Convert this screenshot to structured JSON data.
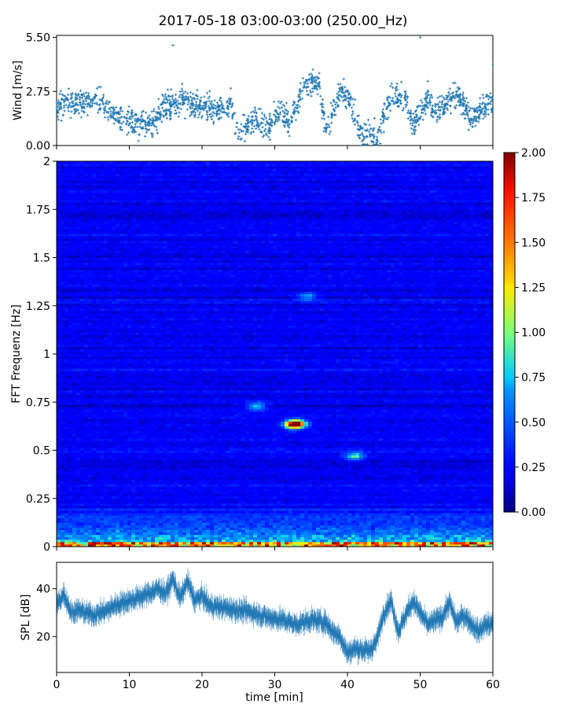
{
  "title": "2017-05-18 03:00-03:00 (250.00_Hz)",
  "chart_data": [
    {
      "type": "scatter",
      "name": "wind",
      "ylabel": "Wind [m/s]",
      "xlim": [
        0,
        60
      ],
      "ylim": [
        0,
        5.6
      ],
      "yticks": [
        0.0,
        2.75,
        5.5
      ],
      "ytick_labels": [
        "0.00",
        "2.75",
        "5.50"
      ],
      "color": "#1f77b4",
      "marker": "+",
      "segments": [
        {
          "x": [
            0,
            6,
            9,
            11,
            13,
            15,
            18,
            22,
            24,
            25,
            27,
            29,
            31,
            32,
            34,
            36,
            37,
            39,
            40,
            42,
            43,
            44,
            46,
            48,
            49,
            51,
            52,
            55,
            57,
            60
          ],
          "y": [
            2.0,
            2.3,
            1.2,
            1.1,
            1.0,
            2.1,
            2.2,
            1.8,
            2.1,
            0.5,
            1.3,
            0.9,
            1.8,
            1.1,
            3.0,
            3.3,
            0.8,
            2.7,
            2.5,
            0.4,
            0.7,
            0.4,
            2.6,
            2.4,
            1.0,
            2.5,
            1.7,
            2.7,
            1.4,
            2.2
          ]
        }
      ],
      "outliers": [
        [
          16,
          5.1
        ],
        [
          50,
          5.5
        ],
        [
          60,
          4.1
        ],
        [
          44.5,
          0.1
        ]
      ]
    },
    {
      "type": "heatmap",
      "name": "spectrogram",
      "ylabel": "FFT Frequenz [Hz]",
      "xlim": [
        0,
        60
      ],
      "ylim": [
        0,
        2
      ],
      "yticks": [
        0,
        0.25,
        0.5,
        0.75,
        1,
        1.25,
        1.5,
        1.75,
        2
      ],
      "ytick_labels": [
        "0",
        "0.25",
        "0.5",
        "0.75",
        "1",
        "1.25",
        "1.5",
        "1.75",
        "2"
      ],
      "colormap": "jet",
      "clim": [
        0,
        2
      ],
      "colorbar_ticks": [
        "0.00",
        "0.25",
        "0.50",
        "0.75",
        "1.00",
        "1.25",
        "1.50",
        "1.75",
        "2.00"
      ],
      "background_level": 0.22,
      "low_freq_band": {
        "f_max": 0.3,
        "level": 0.75
      },
      "hotspots": [
        {
          "t": 27.5,
          "f": 0.73,
          "value": 0.65
        },
        {
          "t": 32.5,
          "f": 0.63,
          "value": 0.9
        },
        {
          "t": 33.0,
          "f": 0.64,
          "value": 1.6
        },
        {
          "t": 34.5,
          "f": 1.3,
          "value": 0.5
        },
        {
          "t": 41.0,
          "f": 0.47,
          "value": 0.7
        }
      ]
    },
    {
      "type": "line",
      "name": "spl",
      "ylabel": "SPL [dB]",
      "xlabel": "time [min]",
      "xlim": [
        0,
        60
      ],
      "ylim": [
        5,
        51
      ],
      "xticks": [
        0,
        10,
        20,
        30,
        40,
        50,
        60
      ],
      "xtick_labels": [
        "0",
        "10",
        "20",
        "30",
        "40",
        "50",
        "60"
      ],
      "yticks": [
        20,
        40
      ],
      "ytick_labels": [
        "20",
        "40"
      ],
      "color": "#1f77b4",
      "x": [
        0,
        1,
        2,
        3,
        5,
        7,
        8,
        10,
        12,
        14,
        15,
        16,
        17,
        18,
        19,
        20,
        21,
        23,
        25,
        27,
        29,
        31,
        33,
        35,
        37,
        38,
        39,
        40,
        41,
        43,
        44,
        45,
        46,
        47,
        48,
        49,
        50,
        51,
        53,
        54,
        55,
        56,
        58,
        59,
        60
      ],
      "y": [
        33,
        38,
        30,
        31,
        29,
        31,
        33,
        35,
        37,
        40,
        38,
        44,
        36,
        43,
        35,
        37,
        33,
        32,
        31,
        30,
        28,
        27,
        25,
        27,
        26,
        22,
        20,
        13,
        15,
        14,
        18,
        30,
        35,
        22,
        29,
        35,
        30,
        25,
        28,
        34,
        26,
        29,
        22,
        25,
        25
      ]
    }
  ]
}
